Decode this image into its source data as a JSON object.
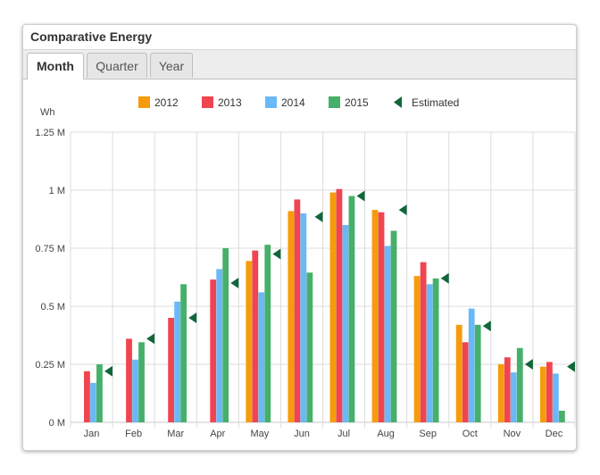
{
  "panel": {
    "title": "Comparative Energy"
  },
  "tabs": [
    {
      "label": "Month"
    },
    {
      "label": "Quarter"
    },
    {
      "label": "Year"
    }
  ],
  "chart_data": {
    "type": "bar",
    "ylabel": "Wh",
    "ylim": [
      0,
      1250000
    ],
    "yticks": [
      {
        "value": 0,
        "label": "0 M"
      },
      {
        "value": 250000,
        "label": "0.25 M"
      },
      {
        "value": 500000,
        "label": "0.5 M"
      },
      {
        "value": 750000,
        "label": "0.75 M"
      },
      {
        "value": 1000000,
        "label": "1 M"
      },
      {
        "value": 1250000,
        "label": "1.25 M"
      }
    ],
    "categories": [
      "Jan",
      "Feb",
      "Mar",
      "Apr",
      "May",
      "Jun",
      "Jul",
      "Aug",
      "Sep",
      "Oct",
      "Nov",
      "Dec"
    ],
    "series": [
      {
        "name": "2012",
        "color": "#f59b0c",
        "values": [
          null,
          null,
          null,
          null,
          695000,
          910000,
          990000,
          915000,
          630000,
          420000,
          250000,
          240000
        ]
      },
      {
        "name": "2013",
        "color": "#f04550",
        "values": [
          220000,
          360000,
          450000,
          615000,
          740000,
          960000,
          1005000,
          905000,
          690000,
          345000,
          280000,
          260000
        ]
      },
      {
        "name": "2014",
        "color": "#6ab9f6",
        "values": [
          170000,
          270000,
          520000,
          660000,
          560000,
          900000,
          850000,
          760000,
          595000,
          490000,
          215000,
          210000
        ]
      },
      {
        "name": "2015",
        "color": "#46b06a",
        "values": [
          250000,
          345000,
          595000,
          750000,
          765000,
          645000,
          975000,
          825000,
          620000,
          420000,
          320000,
          50000
        ]
      }
    ],
    "estimated": {
      "name": "Estimated",
      "color": "#11663a",
      "values": [
        220000,
        360000,
        450000,
        600000,
        725000,
        885000,
        975000,
        915000,
        620000,
        415000,
        250000,
        240000
      ]
    },
    "legend_position": "top-center",
    "grid": true
  }
}
